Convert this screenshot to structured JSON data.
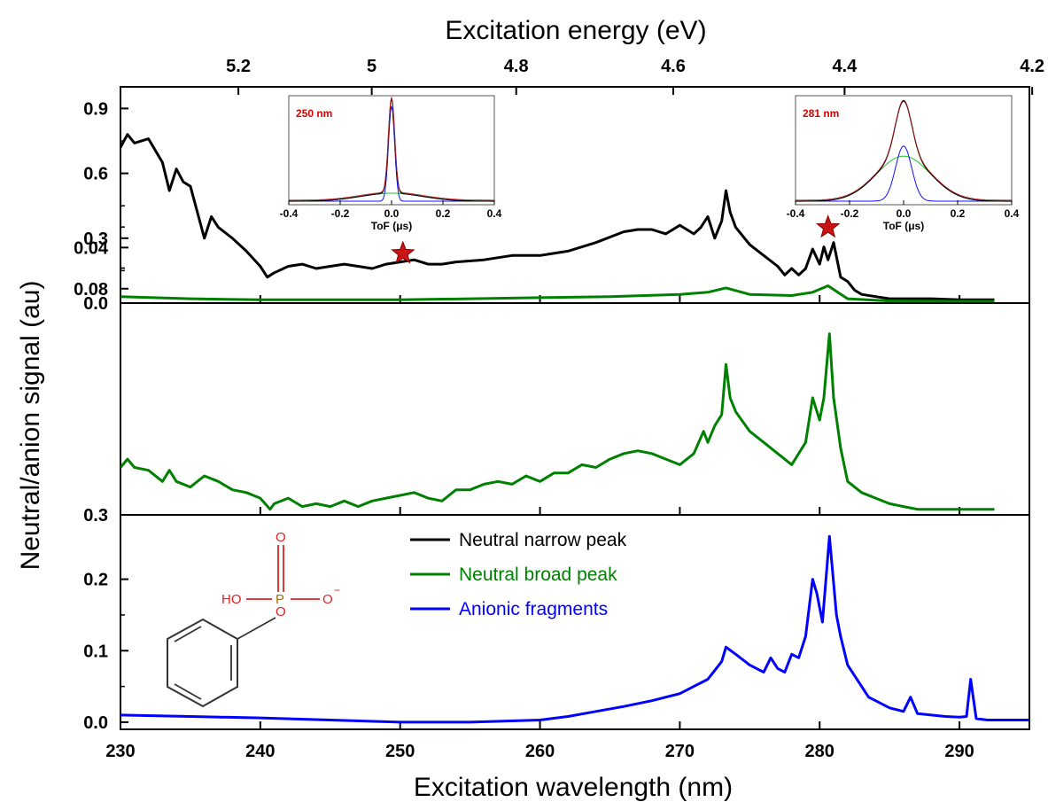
{
  "chart_data": {
    "type": "line",
    "top_axis": {
      "label": "Excitation energy (eV)",
      "ticks": [
        5.2,
        5.0,
        4.8,
        4.6,
        4.4,
        4.2
      ],
      "tick_labels": [
        "5.2",
        "5",
        "4.8",
        "4.6",
        "4.4",
        "4.2"
      ]
    },
    "x_axis": {
      "label": "Excitation wavelength (nm)",
      "range": [
        230,
        295
      ],
      "ticks": [
        230,
        240,
        250,
        260,
        270,
        280,
        290
      ],
      "tick_labels": [
        "230",
        "240",
        "250",
        "260",
        "270",
        "280",
        "290"
      ]
    },
    "y_axis_label": "Neutral/anion signal (au)",
    "panels": [
      {
        "id": "top",
        "ylim": [
          0.0,
          1.0
        ],
        "yticks": [
          0.0,
          0.3,
          0.6,
          0.9
        ],
        "ytick_labels": [
          "0.0",
          "0.3",
          "0.6",
          "0.9"
        ],
        "series": [
          {
            "name": "Neutral narrow peak",
            "color": "#000000",
            "x": [
              230,
              230.5,
              231,
              232,
              233,
              233.5,
              234,
              234.5,
              235,
              235.5,
              236,
              236.5,
              237,
              238,
              239,
              240,
              240.5,
              241,
              242,
              243,
              244,
              245,
              246,
              247,
              248,
              249,
              250,
              251,
              252,
              253,
              254,
              256,
              258,
              260,
              262,
              264,
              266,
              267,
              268,
              269,
              270,
              271,
              271.5,
              272,
              272.5,
              273,
              273.3,
              273.6,
              274,
              275,
              276,
              277,
              277.5,
              278,
              278.5,
              279,
              279.5,
              280,
              280.3,
              280.6,
              281,
              281.5,
              282,
              282.5,
              283,
              284,
              285,
              286,
              288,
              290,
              292.5
            ],
            "y": [
              0.72,
              0.78,
              0.74,
              0.76,
              0.65,
              0.52,
              0.62,
              0.56,
              0.54,
              0.42,
              0.3,
              0.4,
              0.35,
              0.3,
              0.24,
              0.17,
              0.12,
              0.14,
              0.17,
              0.18,
              0.16,
              0.17,
              0.18,
              0.17,
              0.16,
              0.18,
              0.19,
              0.2,
              0.18,
              0.18,
              0.19,
              0.2,
              0.22,
              0.22,
              0.24,
              0.28,
              0.33,
              0.34,
              0.34,
              0.32,
              0.36,
              0.32,
              0.35,
              0.4,
              0.3,
              0.38,
              0.52,
              0.42,
              0.35,
              0.27,
              0.22,
              0.17,
              0.13,
              0.16,
              0.13,
              0.16,
              0.25,
              0.18,
              0.26,
              0.2,
              0.28,
              0.12,
              0.1,
              0.06,
              0.04,
              0.03,
              0.02,
              0.02,
              0.02,
              0.015,
              0.015
            ]
          },
          {
            "name": "Neutral broad peak",
            "color": "#008000",
            "x": [
              230,
              235,
              240,
              245,
              250,
              255,
              260,
              265,
              270,
              272,
              273.3,
              275,
              278,
              279.5,
              280.6,
              282,
              285,
              290,
              292.5
            ],
            "y": [
              0.03,
              0.02,
              0.015,
              0.015,
              0.015,
              0.02,
              0.025,
              0.03,
              0.04,
              0.05,
              0.07,
              0.04,
              0.035,
              0.05,
              0.08,
              0.02,
              0.01,
              0.008,
              0.008
            ]
          }
        ]
      },
      {
        "id": "middle",
        "ylim": [
          0.3,
          0.094
        ],
        "yticks": [
          0.3,
          0.04,
          0.08
        ],
        "ytick_labels": [
          "0.3",
          "0.04",
          "0.08"
        ],
        "series": [
          {
            "name": "Neutral broad peak",
            "color": "#008000",
            "x": [
              230,
              230.5,
              231,
              232,
              233,
              233.5,
              234,
              235,
              236,
              237,
              238,
              239,
              240,
              240.7,
              241,
              242,
              243,
              244,
              245,
              246,
              247,
              248,
              249,
              250,
              251,
              252,
              253,
              254,
              255,
              256,
              257,
              258,
              259,
              260,
              261,
              262,
              263,
              264,
              265,
              266,
              267,
              268,
              269,
              270,
              271,
              271.7,
              272,
              272.5,
              273,
              273.3,
              273.6,
              274,
              275,
              276,
              277,
              278,
              279,
              279.5,
              280,
              280.3,
              280.7,
              281,
              281.5,
              282,
              283,
              284,
              285,
              286,
              287,
              288,
              290,
              292.5
            ],
            "y": [
              0.035,
              0.038,
              0.035,
              0.034,
              0.03,
              0.034,
              0.03,
              0.028,
              0.032,
              0.03,
              0.027,
              0.026,
              0.024,
              0.017,
              0.022,
              0.024,
              0.021,
              0.022,
              0.021,
              0.023,
              0.021,
              0.023,
              0.024,
              0.025,
              0.026,
              0.024,
              0.023,
              0.027,
              0.027,
              0.029,
              0.03,
              0.029,
              0.032,
              0.03,
              0.033,
              0.033,
              0.036,
              0.035,
              0.038,
              0.04,
              0.041,
              0.04,
              0.038,
              0.036,
              0.04,
              0.048,
              0.044,
              0.05,
              0.054,
              0.072,
              0.06,
              0.055,
              0.048,
              0.044,
              0.04,
              0.036,
              0.044,
              0.06,
              0.052,
              0.06,
              0.083,
              0.06,
              0.042,
              0.03,
              0.026,
              0.024,
              0.022,
              0.021,
              0.02,
              0.019,
              0.019,
              0.018
            ]
          }
        ]
      },
      {
        "id": "bottom",
        "ylim": [
          -0.01,
          0.29
        ],
        "yticks": [
          0.0,
          0.1,
          0.2
        ],
        "ytick_labels": [
          "0.0",
          "0.1",
          "0.2"
        ],
        "series": [
          {
            "name": "Anionic fragments",
            "color": "#0000ff",
            "x": [
              230,
              235,
              240,
              245,
              250,
              255,
              260,
              262,
              264,
              266,
              268,
              270,
              271,
              272,
              273,
              273.3,
              274,
              275,
              276,
              276.5,
              277,
              277.5,
              278,
              278.5,
              279,
              279.5,
              279.8,
              280.2,
              280.7,
              281.2,
              281.5,
              282,
              283,
              283.5,
              284,
              285,
              286,
              286.5,
              287,
              288,
              289,
              290,
              290.5,
              290.8,
              291.2,
              292,
              295
            ],
            "y": [
              0.01,
              0.008,
              0.006,
              0.003,
              0.0,
              0.0,
              0.003,
              0.008,
              0.015,
              0.022,
              0.03,
              0.04,
              0.05,
              0.06,
              0.085,
              0.105,
              0.095,
              0.08,
              0.07,
              0.09,
              0.075,
              0.07,
              0.095,
              0.09,
              0.12,
              0.2,
              0.18,
              0.14,
              0.26,
              0.15,
              0.12,
              0.08,
              0.05,
              0.035,
              0.03,
              0.02,
              0.015,
              0.035,
              0.012,
              0.01,
              0.008,
              0.007,
              0.008,
              0.06,
              0.005,
              0.003,
              0.003
            ]
          }
        ]
      }
    ],
    "insets": [
      {
        "label": "250 nm",
        "xlabel": "ToF (μs)",
        "xlim": [
          -0.4,
          0.4
        ],
        "xticks": [
          -0.4,
          -0.2,
          0.0,
          0.2,
          0.4
        ],
        "xtick_labels": [
          "-0.4",
          "-0.2",
          "0.0",
          "0.2",
          "0.4"
        ],
        "narrow_amp": 0.95,
        "narrow_width": 0.012,
        "broad_amp": 0.08,
        "broad_width": 0.12,
        "marker_wavelength": 250.2,
        "marker_value": 0.23
      },
      {
        "label": "281 nm",
        "xlabel": "ToF (μs)",
        "xlim": [
          -0.4,
          0.4
        ],
        "xticks": [
          -0.4,
          -0.2,
          0.0,
          0.2,
          0.4
        ],
        "xtick_labels": [
          "-0.4",
          "-0.2",
          "0.0",
          "0.2",
          "0.4"
        ],
        "narrow_amp": 0.55,
        "narrow_width": 0.03,
        "broad_amp": 0.45,
        "broad_width": 0.1,
        "marker_wavelength": 280.6,
        "marker_value": 0.35
      }
    ],
    "legend": {
      "position": "bottom-panel-center",
      "entries": [
        {
          "name": "Neutral narrow peak",
          "color": "#000000"
        },
        {
          "name": "Neutral broad peak",
          "color": "#008000"
        },
        {
          "name": "Anionic fragments",
          "color": "#0000ff"
        }
      ]
    },
    "molecule_labels": [
      "O",
      "HO",
      "P",
      "O",
      "O",
      "−"
    ],
    "grid": false
  }
}
